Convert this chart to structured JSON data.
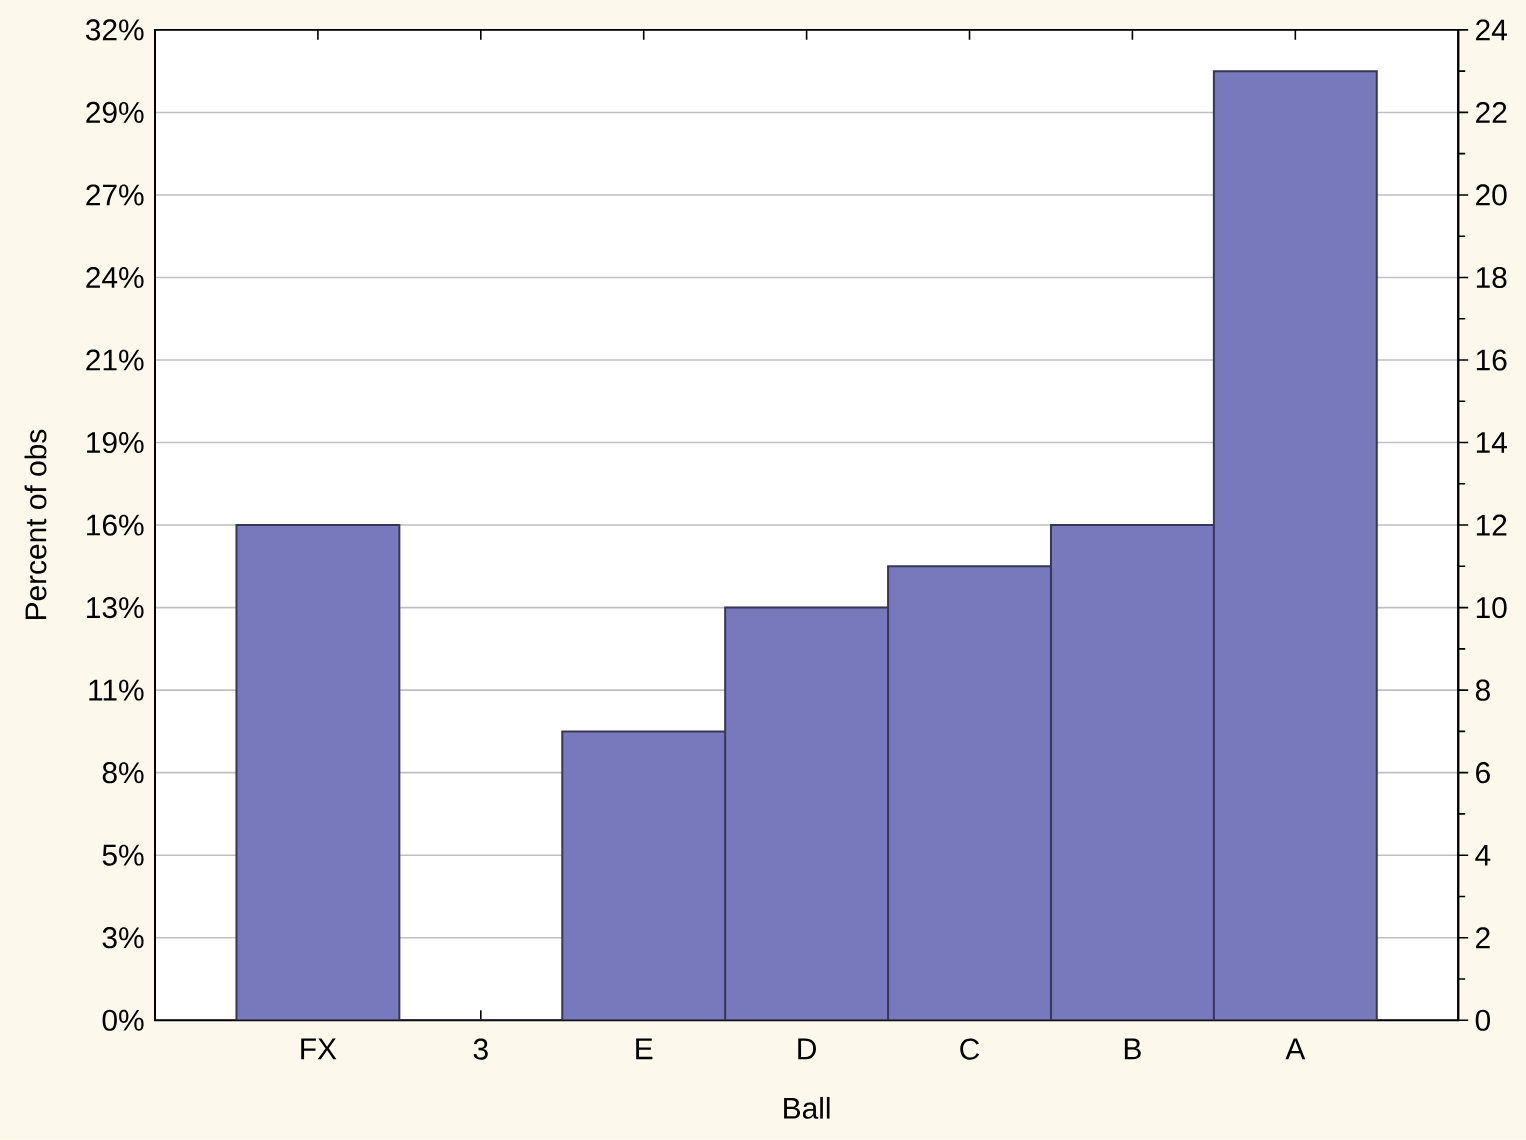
{
  "chart_data": {
    "type": "bar",
    "categories": [
      "FX",
      "3",
      "E",
      "D",
      "C",
      "B",
      "A"
    ],
    "xlabel": "Ball",
    "ylabel": "Percent of obs",
    "series": [
      {
        "color": "#7878bc",
        "axis": "y2",
        "values": [
          12,
          0,
          7,
          10,
          11,
          12,
          23
        ]
      }
    ],
    "ylim": [
      0,
      32
    ],
    "yticks": [
      {
        "value": 0,
        "label": "0%"
      },
      {
        "value": 2.667,
        "label": "3%"
      },
      {
        "value": 5.333,
        "label": "5%"
      },
      {
        "value": 8,
        "label": "8%"
      },
      {
        "value": 10.667,
        "label": "11%"
      },
      {
        "value": 13.333,
        "label": "13%"
      },
      {
        "value": 16,
        "label": "16%"
      },
      {
        "value": 18.667,
        "label": "19%"
      },
      {
        "value": 21.333,
        "label": "21%"
      },
      {
        "value": 24,
        "label": "24%"
      },
      {
        "value": 26.667,
        "label": "27%"
      },
      {
        "value": 29.333,
        "label": "29%"
      },
      {
        "value": 32,
        "label": "32%"
      }
    ],
    "y2lim": [
      0,
      24
    ],
    "y2ticks": [
      0,
      {
        "value": 1,
        "label": null
      },
      2,
      {
        "value": 3,
        "label": null
      },
      4,
      {
        "value": 5,
        "label": null
      },
      6,
      {
        "value": 7,
        "label": null
      },
      8,
      {
        "value": 9,
        "label": null
      },
      10,
      {
        "value": 11,
        "label": null
      },
      12,
      {
        "value": 13,
        "label": null
      },
      14,
      {
        "value": 15,
        "label": null
      },
      16,
      {
        "value": 17,
        "label": null
      },
      18,
      {
        "value": 19,
        "label": null
      },
      20,
      {
        "value": 21,
        "label": null
      },
      22,
      {
        "value": 23,
        "label": null
      },
      24
    ],
    "grid": "y"
  }
}
